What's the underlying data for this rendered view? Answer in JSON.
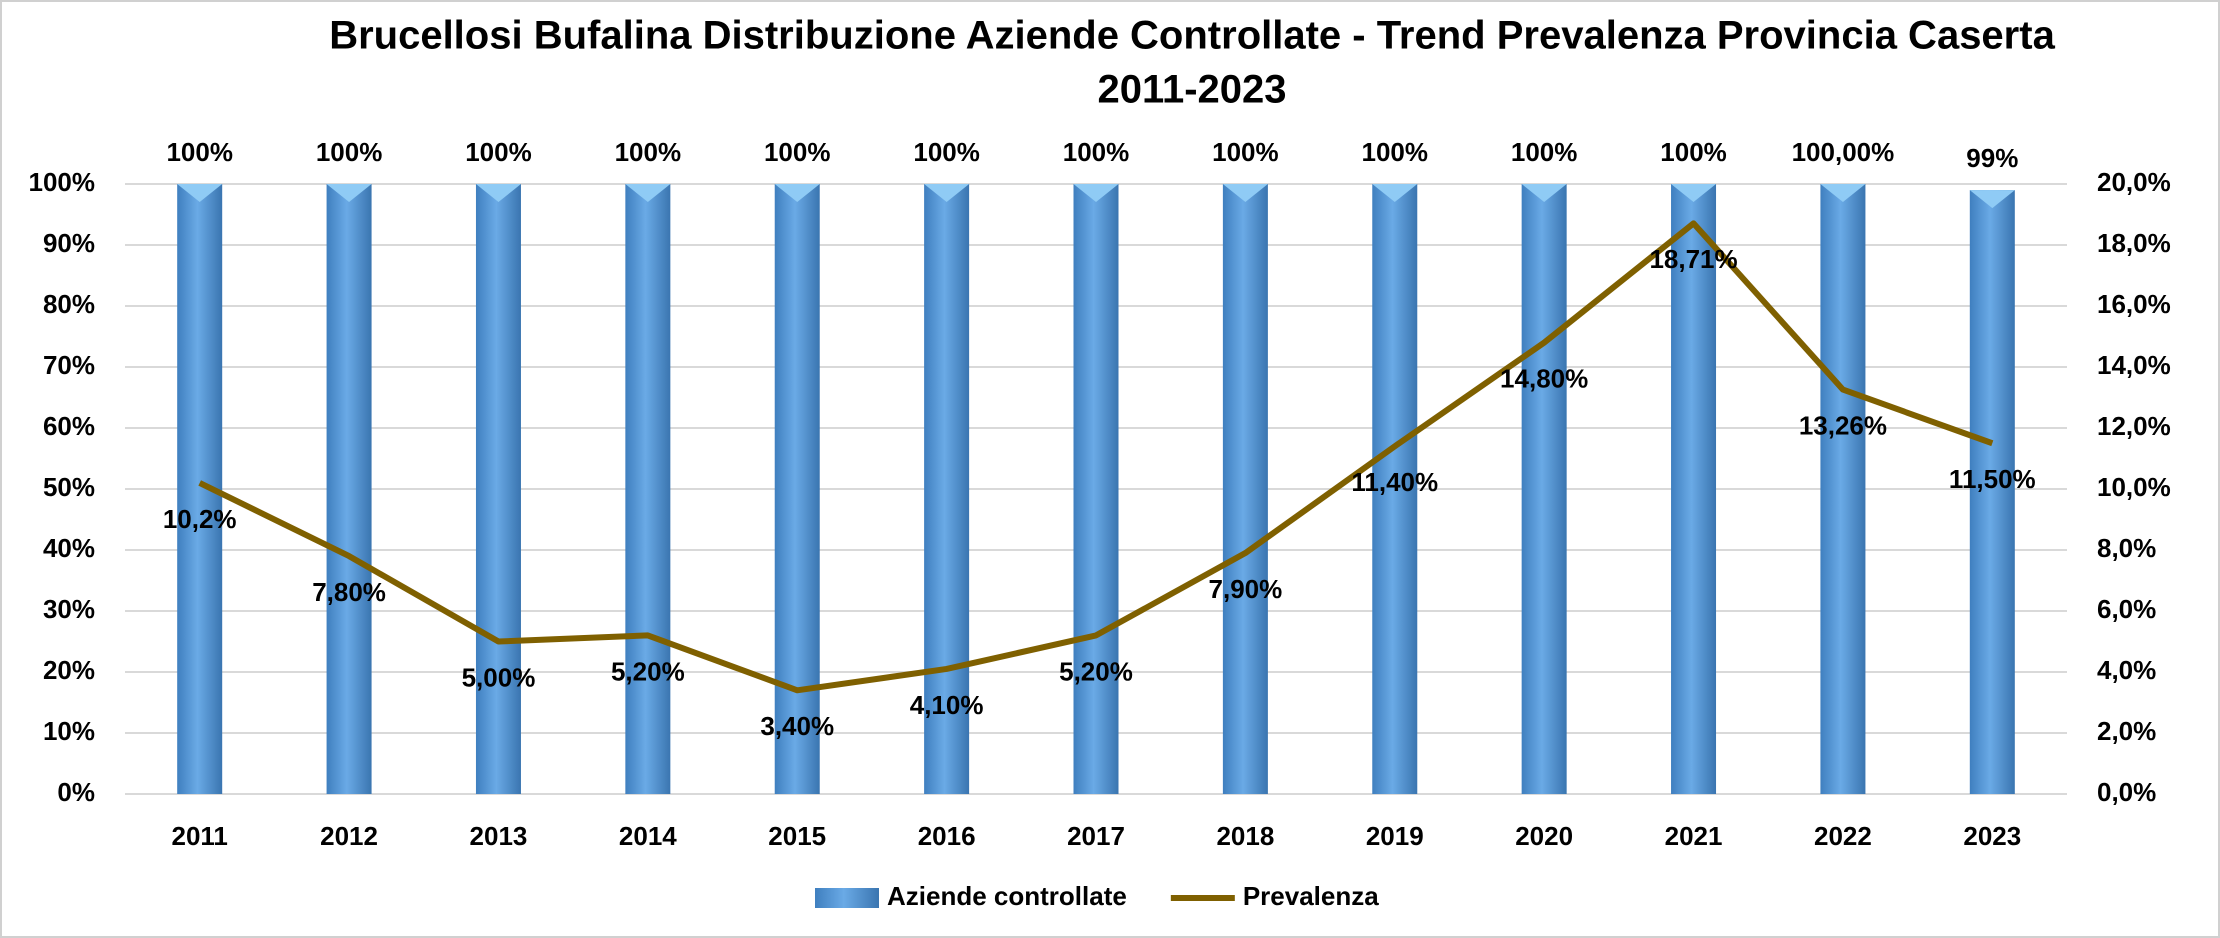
{
  "chart_data": {
    "type": "combo",
    "title": "Brucellosi Bufalina Distribuzione Aziende Controllate - Trend Prevalenza Provincia Caserta",
    "subtitle": "2011-2023",
    "categories": [
      "2011",
      "2012",
      "2013",
      "2014",
      "2015",
      "2016",
      "2017",
      "2018",
      "2019",
      "2020",
      "2021",
      "2022",
      "2023"
    ],
    "series": [
      {
        "name": "Aziende controllate",
        "type": "bar",
        "axis": "y",
        "color": "#5b9bd5",
        "values": [
          100,
          100,
          100,
          100,
          100,
          100,
          100,
          100,
          100,
          100,
          100,
          100,
          99
        ],
        "value_labels": [
          "100%",
          "100%",
          "100%",
          "100%",
          "100%",
          "100%",
          "100%",
          "100%",
          "100%",
          "100%",
          "100%",
          "100,00%",
          "99%"
        ]
      },
      {
        "name": "Prevalenza",
        "type": "line",
        "axis": "y2",
        "color": "#7f6000",
        "values": [
          10.2,
          7.8,
          5.0,
          5.2,
          3.4,
          4.1,
          5.2,
          7.9,
          11.4,
          14.8,
          18.71,
          13.26,
          11.5
        ],
        "value_labels": [
          "10,2%",
          "7,80%",
          "5,00%",
          "5,20%",
          "3,40%",
          "4,10%",
          "5,20%",
          "7,90%",
          "11,40%",
          "14,80%",
          "18,71%",
          "13,26%",
          "11,50%"
        ]
      }
    ],
    "ylim": [
      0,
      100
    ],
    "yticks": [
      {
        "value": 0,
        "label": "0%"
      },
      {
        "value": 10,
        "label": "10%"
      },
      {
        "value": 20,
        "label": "20%"
      },
      {
        "value": 30,
        "label": "30%"
      },
      {
        "value": 40,
        "label": "40%"
      },
      {
        "value": 50,
        "label": "50%"
      },
      {
        "value": 60,
        "label": "60%"
      },
      {
        "value": 70,
        "label": "70%"
      },
      {
        "value": 80,
        "label": "80%"
      },
      {
        "value": 90,
        "label": "90%"
      },
      {
        "value": 100,
        "label": "100%"
      }
    ],
    "y2lim": [
      0,
      20
    ],
    "y2ticks": [
      {
        "value": 0,
        "label": "0,0%"
      },
      {
        "value": 2,
        "label": "2,0%"
      },
      {
        "value": 4,
        "label": "4,0%"
      },
      {
        "value": 6,
        "label": "6,0%"
      },
      {
        "value": 8,
        "label": "8,0%"
      },
      {
        "value": 10,
        "label": "10,0%"
      },
      {
        "value": 12,
        "label": "12,0%"
      },
      {
        "value": 14,
        "label": "14,0%"
      },
      {
        "value": 16,
        "label": "16,0%"
      },
      {
        "value": 18,
        "label": "18,0%"
      },
      {
        "value": 20,
        "label": "20,0%"
      }
    ],
    "grid": true,
    "legend": "bottom"
  }
}
